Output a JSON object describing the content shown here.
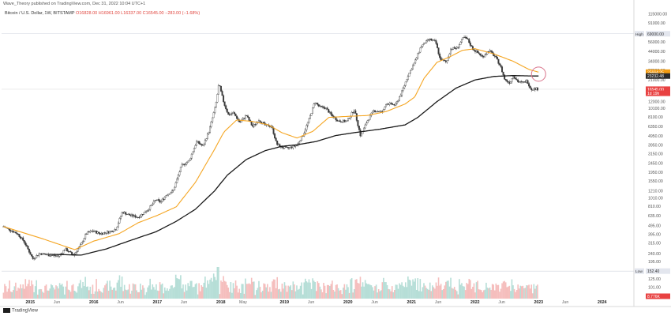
{
  "header": {
    "published": "Wave_Theory published on TradingView.com, Dec 31, 2022 10:04 UTC+1",
    "symbol": "Bitcoin / U.S. Dollar, 1W, BITSTAMP",
    "ohlc": "O16828.00 H16961.00 L16337.00 C16545.00 −283.00 (−1.68%)"
  },
  "brand": {
    "name": "TradingView"
  },
  "chart_data": {
    "type": "candlestick",
    "yscale": "log",
    "title": "Bitcoin / U.S. Dollar, 1W, BITSTAMP",
    "y_ticks": [
      115000,
      91000,
      69000,
      56000,
      44000,
      34000,
      27000,
      21000,
      16000,
      12000,
      10100,
      8100,
      6350,
      4950,
      3950,
      3150,
      2450,
      1950,
      1550,
      1210,
      1010,
      810,
      635,
      495,
      395,
      315,
      240,
      195,
      155,
      125,
      101,
      81
    ],
    "y_tick_labels": [
      "115000.00",
      "91000.00",
      "69000.00",
      "56000.00",
      "44000.00",
      "34000.00",
      "27000.00",
      "21000.00",
      "16000.00",
      "12000.00",
      "10100.00",
      "8100.00",
      "6350.00",
      "4950.00",
      "3950.00",
      "3150.00",
      "2450.00",
      "1950.00",
      "1550.00",
      "1210.00",
      "1010.00",
      "810.00",
      "635.00",
      "495.00",
      "395.00",
      "315.00",
      "240.00",
      "195.00",
      "155.00",
      "125.00",
      "101.00",
      "81.00"
    ],
    "ylim": [
      72,
      140000
    ],
    "x_ticks": [
      "2015",
      "Jun",
      "2016",
      "Jun",
      "2017",
      "Jun",
      "2018",
      "May",
      "2019",
      "Jun",
      "2020",
      "Jun",
      "2021",
      "Jun",
      "2022",
      "Jun",
      "2023",
      "Jun",
      "2024"
    ],
    "xlim": [
      2014.55,
      2024.5
    ],
    "x_tick_years": [
      2015.0,
      2015.42,
      2016.0,
      2016.42,
      2017.0,
      2017.42,
      2018.0,
      2018.35,
      2019.0,
      2019.42,
      2020.0,
      2020.42,
      2021.0,
      2021.42,
      2022.0,
      2022.42,
      2023.0,
      2023.42,
      2024.0
    ],
    "badges": [
      {
        "label": "High",
        "value": "69000.00",
        "color": "#e3e6ee",
        "text_color": "#333333"
      },
      {
        "label": "",
        "value": "25664.25",
        "color": "#f39c12",
        "text_color": "#ffffff"
      },
      {
        "label": "",
        "value": "23232.48",
        "color": "#2b2b2b",
        "text_color": "#ffffff"
      },
      {
        "label": "",
        "value": "16545.00",
        "color": "#e84141",
        "text_color": "#ffffff"
      },
      {
        "label": "",
        "value": "1d 19h",
        "color": "#e84141",
        "text_color": "#ffffff"
      },
      {
        "label": "Low",
        "value": "152.40",
        "color": "#e3e6ee",
        "text_color": "#333333"
      },
      {
        "label": "",
        "value": "8.776K",
        "color": "#e84141",
        "text_color": "#ffffff"
      }
    ],
    "series": [
      {
        "name": "",
        "kind": "price_path",
        "points": [
          [
            2014.58,
            480
          ],
          [
            2014.8,
            400
          ],
          [
            2014.9,
            330
          ],
          [
            2015.04,
            210
          ],
          [
            2015.15,
            240
          ],
          [
            2015.3,
            230
          ],
          [
            2015.45,
            225
          ],
          [
            2015.55,
            270
          ],
          [
            2015.68,
            230
          ],
          [
            2015.8,
            300
          ],
          [
            2015.88,
            400
          ],
          [
            2015.98,
            430
          ],
          [
            2016.1,
            400
          ],
          [
            2016.25,
            420
          ],
          [
            2016.35,
            450
          ],
          [
            2016.45,
            700
          ],
          [
            2016.55,
            650
          ],
          [
            2016.7,
            610
          ],
          [
            2016.85,
            740
          ],
          [
            2016.98,
            960
          ],
          [
            2017.05,
            900
          ],
          [
            2017.15,
            1100
          ],
          [
            2017.25,
            1200
          ],
          [
            2017.38,
            2300
          ],
          [
            2017.5,
            2600
          ],
          [
            2017.62,
            4300
          ],
          [
            2017.72,
            3800
          ],
          [
            2017.82,
            5800
          ],
          [
            2017.92,
            11000
          ],
          [
            2017.97,
            19000
          ],
          [
            2018.05,
            11500
          ],
          [
            2018.12,
            8500
          ],
          [
            2018.2,
            9000
          ],
          [
            2018.3,
            7000
          ],
          [
            2018.4,
            8500
          ],
          [
            2018.5,
            6300
          ],
          [
            2018.6,
            7500
          ],
          [
            2018.7,
            6500
          ],
          [
            2018.8,
            6400
          ],
          [
            2018.88,
            4000
          ],
          [
            2018.96,
            3700
          ],
          [
            2019.05,
            3600
          ],
          [
            2019.2,
            3900
          ],
          [
            2019.3,
            5200
          ],
          [
            2019.4,
            8000
          ],
          [
            2019.48,
            12000
          ],
          [
            2019.55,
            10500
          ],
          [
            2019.65,
            10200
          ],
          [
            2019.75,
            8300
          ],
          [
            2019.85,
            7300
          ],
          [
            2019.98,
            7200
          ],
          [
            2020.1,
            9800
          ],
          [
            2020.2,
            4900
          ],
          [
            2020.3,
            7200
          ],
          [
            2020.4,
            9500
          ],
          [
            2020.55,
            9200
          ],
          [
            2020.6,
            11500
          ],
          [
            2020.75,
            11000
          ],
          [
            2020.85,
            15500
          ],
          [
            2020.95,
            24000
          ],
          [
            2021.05,
            33000
          ],
          [
            2021.15,
            50000
          ],
          [
            2021.28,
            60000
          ],
          [
            2021.38,
            56000
          ],
          [
            2021.45,
            36000
          ],
          [
            2021.55,
            33000
          ],
          [
            2021.62,
            47000
          ],
          [
            2021.72,
            48000
          ],
          [
            2021.82,
            63000
          ],
          [
            2021.88,
            60000
          ],
          [
            2021.96,
            47000
          ],
          [
            2022.05,
            42000
          ],
          [
            2022.12,
            38000
          ],
          [
            2022.22,
            45000
          ],
          [
            2022.32,
            38000
          ],
          [
            2022.4,
            30000
          ],
          [
            2022.47,
            21000
          ],
          [
            2022.55,
            19500
          ],
          [
            2022.6,
            23500
          ],
          [
            2022.68,
            20000
          ],
          [
            2022.75,
            19500
          ],
          [
            2022.82,
            20500
          ],
          [
            2022.88,
            16500
          ],
          [
            2022.95,
            16800
          ],
          [
            2023.0,
            16545
          ]
        ]
      },
      {
        "name": "",
        "kind": "moving_average",
        "color": "#f5a623",
        "points": [
          [
            2014.58,
            480
          ],
          [
            2015.2,
            350
          ],
          [
            2015.7,
            265
          ],
          [
            2016.0,
            330
          ],
          [
            2016.4,
            400
          ],
          [
            2016.7,
            530
          ],
          [
            2017.0,
            640
          ],
          [
            2017.3,
            800
          ],
          [
            2017.6,
            1500
          ],
          [
            2017.9,
            3500
          ],
          [
            2018.05,
            5500
          ],
          [
            2018.25,
            7500
          ],
          [
            2018.5,
            7200
          ],
          [
            2018.75,
            6600
          ],
          [
            2018.96,
            5400
          ],
          [
            2019.2,
            4700
          ],
          [
            2019.45,
            5600
          ],
          [
            2019.7,
            8000
          ],
          [
            2019.98,
            8200
          ],
          [
            2020.3,
            8400
          ],
          [
            2020.6,
            9300
          ],
          [
            2020.9,
            11300
          ],
          [
            2021.05,
            13500
          ],
          [
            2021.2,
            22000
          ],
          [
            2021.4,
            33000
          ],
          [
            2021.6,
            38000
          ],
          [
            2021.8,
            45000
          ],
          [
            2022.0,
            47000
          ],
          [
            2022.3,
            41000
          ],
          [
            2022.6,
            34000
          ],
          [
            2022.85,
            27500
          ],
          [
            2023.0,
            25664
          ]
        ]
      },
      {
        "name": "",
        "kind": "moving_average",
        "color": "#1a1a1a",
        "points": [
          [
            2015.3,
            235
          ],
          [
            2015.8,
            230
          ],
          [
            2016.2,
            270
          ],
          [
            2016.6,
            340
          ],
          [
            2016.98,
            420
          ],
          [
            2017.3,
            550
          ],
          [
            2017.6,
            750
          ],
          [
            2017.9,
            1200
          ],
          [
            2018.1,
            1800
          ],
          [
            2018.4,
            2700
          ],
          [
            2018.7,
            3400
          ],
          [
            2018.96,
            3800
          ],
          [
            2019.2,
            3950
          ],
          [
            2019.5,
            4300
          ],
          [
            2019.8,
            5000
          ],
          [
            2020.1,
            5400
          ],
          [
            2020.5,
            5900
          ],
          [
            2020.9,
            6600
          ],
          [
            2021.1,
            8000
          ],
          [
            2021.4,
            12000
          ],
          [
            2021.7,
            17000
          ],
          [
            2022.0,
            21000
          ],
          [
            2022.3,
            23000
          ],
          [
            2022.6,
            23500
          ],
          [
            2022.85,
            23300
          ],
          [
            2023.0,
            23232
          ]
        ]
      }
    ]
  }
}
